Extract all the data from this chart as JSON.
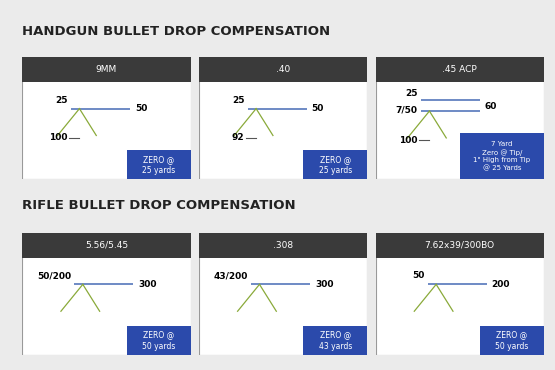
{
  "bg_color": "#ebebeb",
  "white": "#ffffff",
  "dark_header": "#3a3a3a",
  "blue_box": "#2b4aab",
  "green_line": "#8aaa3a",
  "blue_line": "#5577bb",
  "handgun_title": "HANDGUN BULLET DROP COMPENSATION",
  "rifle_title": "RIFLE BULLET DROP COMPENSATION",
  "handgun_cols": [
    "9MM",
    ".40",
    ".45 ACP"
  ],
  "rifle_cols": [
    "5.56/5.45",
    ".308",
    "7.62x39/300BO"
  ],
  "handgun_data": [
    {
      "labels": [
        "25",
        "50",
        "100"
      ],
      "zero_text": "ZERO @\n25 yards",
      "is_45acp": false
    },
    {
      "labels": [
        "25",
        "50",
        "92"
      ],
      "zero_text": "ZERO @\n25 yards",
      "is_45acp": false
    },
    {
      "labels": [
        "25",
        "7/50",
        "60",
        "100"
      ],
      "zero_text": "7 Yard\nZero @ Tip/\n1\" High from Tip\n@ 25 Yards",
      "is_45acp": true
    }
  ],
  "rifle_data": [
    {
      "labels": [
        "50/200",
        "300"
      ],
      "zero_text": "ZERO @\n50 yards"
    },
    {
      "labels": [
        "43/200",
        "300"
      ],
      "zero_text": "ZERO @\n43 yards"
    },
    {
      "labels": [
        "50",
        "200"
      ],
      "zero_text": "ZERO @\n50 yards"
    }
  ]
}
